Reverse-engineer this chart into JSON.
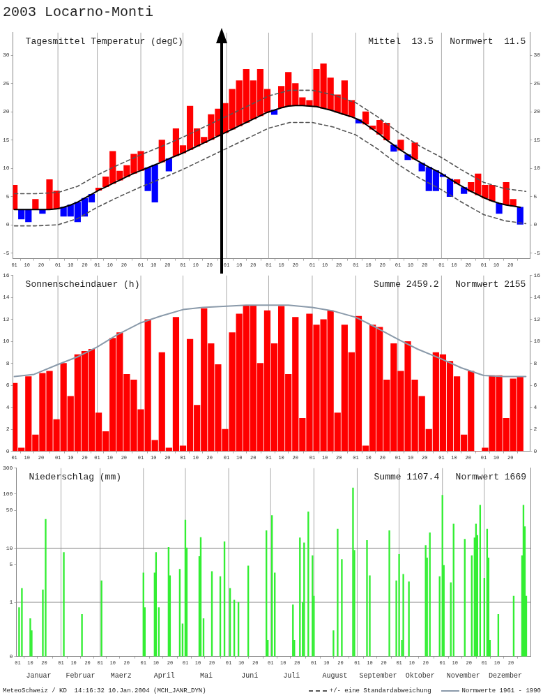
{
  "chart_data": [
    {
      "type": "bar",
      "title": "2003 Locarno-Monti",
      "subtitle": "Tagesmittel Temperatur (degC)",
      "annotations": [
        "Mittel  13.5   Normwert  11.5"
      ],
      "x": [
        "2003-01-01",
        "2003-01-06",
        "2003-01-11",
        "2003-01-16",
        "2003-01-21",
        "2003-01-26",
        "2003-01-31",
        "2003-02-05",
        "2003-02-10",
        "2003-02-15",
        "2003-02-20",
        "2003-02-25",
        "2003-03-02",
        "2003-03-07",
        "2003-03-12",
        "2003-03-17",
        "2003-03-22",
        "2003-03-27",
        "2003-04-01",
        "2003-04-06",
        "2003-04-11",
        "2003-04-16",
        "2003-04-21",
        "2003-04-26",
        "2003-05-01",
        "2003-05-06",
        "2003-05-11",
        "2003-05-16",
        "2003-05-21",
        "2003-05-26",
        "2003-05-31",
        "2003-06-05",
        "2003-06-10",
        "2003-06-15",
        "2003-06-20",
        "2003-06-25",
        "2003-06-30",
        "2003-07-05",
        "2003-07-10",
        "2003-07-15",
        "2003-07-20",
        "2003-07-25",
        "2003-07-30",
        "2003-08-04",
        "2003-08-09",
        "2003-08-14",
        "2003-08-19",
        "2003-08-24",
        "2003-08-29",
        "2003-09-03",
        "2003-09-08",
        "2003-09-13",
        "2003-09-18",
        "2003-09-23",
        "2003-09-28",
        "2003-10-03",
        "2003-10-08",
        "2003-10-13",
        "2003-10-18",
        "2003-10-23",
        "2003-10-28",
        "2003-11-02",
        "2003-11-07",
        "2003-11-12",
        "2003-11-17",
        "2003-11-22",
        "2003-11-27",
        "2003-12-02",
        "2003-12-07",
        "2003-12-12",
        "2003-12-17",
        "2003-12-22",
        "2003-12-27"
      ],
      "xlim": [
        "2002-12-31",
        "2004-01-03"
      ],
      "xticks": [
        {
          "value": "2003-01-01",
          "label": "01"
        },
        {
          "value": "2003-01-10",
          "label": "10"
        },
        {
          "value": "2003-01-20",
          "label": "20"
        },
        {
          "value": "2003-02-01",
          "label": "01"
        },
        {
          "value": "2003-02-10",
          "label": "10"
        },
        {
          "value": "2003-02-20",
          "label": "20"
        },
        {
          "value": "2003-03-01",
          "label": "01"
        },
        {
          "value": "2003-03-10",
          "label": "10"
        },
        {
          "value": "2003-03-20",
          "label": "20"
        },
        {
          "value": "2003-04-01",
          "label": "01"
        },
        {
          "value": "2003-04-10",
          "label": "10"
        },
        {
          "value": "2003-04-20",
          "label": "20"
        },
        {
          "value": "2003-05-01",
          "label": "01"
        },
        {
          "value": "2003-05-10",
          "label": "10"
        },
        {
          "value": "2003-05-20",
          "label": "20"
        },
        {
          "value": "2003-06-01",
          "label": "01"
        },
        {
          "value": "2003-06-10",
          "label": "10"
        },
        {
          "value": "2003-06-20",
          "label": "20"
        },
        {
          "value": "2003-07-01",
          "label": "01"
        },
        {
          "value": "2003-07-10",
          "label": "10"
        },
        {
          "value": "2003-07-20",
          "label": "20"
        },
        {
          "value": "2003-08-01",
          "label": "01"
        },
        {
          "value": "2003-08-10",
          "label": "10"
        },
        {
          "value": "2003-08-20",
          "label": "20"
        },
        {
          "value": "2003-09-01",
          "label": "01"
        },
        {
          "value": "2003-09-10",
          "label": "10"
        },
        {
          "value": "2003-09-20",
          "label": "20"
        },
        {
          "value": "2003-10-01",
          "label": "01"
        },
        {
          "value": "2003-10-10",
          "label": "10"
        },
        {
          "value": "2003-10-20",
          "label": "20"
        },
        {
          "value": "2003-11-01",
          "label": "01"
        },
        {
          "value": "2003-11-10",
          "label": "10"
        },
        {
          "value": "2003-11-20",
          "label": "20"
        },
        {
          "value": "2003-12-01",
          "label": "01"
        },
        {
          "value": "2003-12-10",
          "label": "10"
        },
        {
          "value": "2003-12-20",
          "label": "20"
        }
      ],
      "ylim": [
        -6,
        34
      ],
      "yticks": [
        -5,
        0,
        5,
        10,
        15,
        20,
        25,
        30
      ],
      "y2lim": [
        -6,
        34
      ],
      "y2ticks": [
        -5,
        0,
        5,
        10,
        15,
        20,
        25,
        30
      ],
      "legend": "bottom",
      "marker": "none",
      "ref_lines": [
        {
          "axis": "x",
          "value": "2003-02-01",
          "color": "#aaaaaa"
        },
        {
          "axis": "x",
          "value": "2003-03-01",
          "color": "#aaaaaa"
        },
        {
          "axis": "x",
          "value": "2003-04-01",
          "color": "#aaaaaa"
        },
        {
          "axis": "x",
          "value": "2003-05-01",
          "color": "#aaaaaa"
        },
        {
          "axis": "x",
          "value": "2003-06-01",
          "color": "#aaaaaa"
        },
        {
          "axis": "x",
          "value": "2003-07-01",
          "color": "#aaaaaa"
        },
        {
          "axis": "x",
          "value": "2003-08-01",
          "color": "#aaaaaa"
        },
        {
          "axis": "x",
          "value": "2003-09-01",
          "color": "#aaaaaa"
        },
        {
          "axis": "x",
          "value": "2003-10-01",
          "color": "#aaaaaa"
        },
        {
          "axis": "x",
          "value": "2003-11-01",
          "color": "#aaaaaa"
        },
        {
          "axis": "x",
          "value": "2003-12-01",
          "color": "#aaaaaa"
        }
      ],
      "series": [
        {
          "values": [
            4.3,
            -1.7,
            -2.2,
            1.8,
            -0.7,
            5.3,
            3.2,
            -1.6,
            -2.0,
            -3.5,
            -3.2,
            -1.4,
            0.4,
            1.8,
            5.7,
            1.6,
            2.0,
            3.4,
            3.4,
            -4.1,
            -6.6,
            3.9,
            -2.2,
            4.8,
            1.3,
            7.7,
            3.1,
            1.0,
            4.4,
            4.8,
            5.2,
            7.1,
            8.0,
            9.4,
            6.8,
            8.2,
            4.1,
            -0.8,
            3.8,
            6.0,
            3.9,
            1.4,
            1.0,
            6.6,
            7.9,
            5.7,
            3.1,
            6.0,
            2.9,
            -0.6,
            2.2,
            0.6,
            2.5,
            3.0,
            -1.1,
            1.8,
            -0.9,
            2.9,
            -1.4,
            -4.2,
            -3.6,
            -0.4,
            -3.1,
            0.7,
            -1.1,
            1.6,
            3.7,
            2.3,
            2.8,
            -1.8,
            4.0,
            1.2,
            -3.1
          ],
          "base": [
            2.7,
            2.7,
            2.7,
            2.7,
            2.7,
            2.7,
            2.8,
            3.1,
            3.5,
            4.0,
            4.7,
            5.4,
            6.1,
            6.7,
            7.3,
            7.9,
            8.5,
            9.1,
            9.6,
            10.1,
            10.6,
            11.1,
            11.7,
            12.2,
            12.7,
            13.3,
            13.9,
            14.5,
            15.1,
            15.7,
            16.3,
            16.9,
            17.5,
            18.1,
            18.7,
            19.3,
            19.9,
            20.3,
            20.7,
            21.0,
            21.1,
            21.1,
            21.0,
            20.9,
            20.6,
            20.3,
            19.9,
            19.5,
            19.1,
            18.6,
            17.8,
            16.9,
            16.0,
            15.0,
            14.1,
            13.2,
            12.4,
            11.6,
            10.9,
            10.2,
            9.6,
            8.9,
            8.1,
            7.3,
            6.6,
            5.9,
            5.3,
            4.7,
            4.2,
            3.8,
            3.5,
            3.3,
            3.1
          ],
          "colors": [
            "#ff0000",
            "#0000ff",
            "#0000ff",
            "#ff0000",
            "#0000ff",
            "#ff0000",
            "#ff0000",
            "#0000ff",
            "#0000ff",
            "#0000ff",
            "#0000ff",
            "#0000ff",
            "#ff0000",
            "#ff0000",
            "#ff0000",
            "#ff0000",
            "#ff0000",
            "#ff0000",
            "#ff0000",
            "#0000ff",
            "#0000ff",
            "#ff0000",
            "#0000ff",
            "#ff0000",
            "#ff0000",
            "#ff0000",
            "#ff0000",
            "#ff0000",
            "#ff0000",
            "#ff0000",
            "#ff0000",
            "#ff0000",
            "#ff0000",
            "#ff0000",
            "#ff0000",
            "#ff0000",
            "#ff0000",
            "#0000ff",
            "#ff0000",
            "#ff0000",
            "#ff0000",
            "#ff0000",
            "#ff0000",
            "#ff0000",
            "#ff0000",
            "#ff0000",
            "#ff0000",
            "#ff0000",
            "#ff0000",
            "#0000ff",
            "#ff0000",
            "#ff0000",
            "#ff0000",
            "#ff0000",
            "#0000ff",
            "#ff0000",
            "#0000ff",
            "#ff0000",
            "#0000ff",
            "#0000ff",
            "#0000ff",
            "#0000ff",
            "#0000ff",
            "#ff0000",
            "#0000ff",
            "#ff0000",
            "#ff0000",
            "#ff0000",
            "#ff0000",
            "#0000ff",
            "#ff0000",
            "#ff0000",
            "#0000ff"
          ]
        },
        {
          "type": "line",
          "color": "#000000",
          "values": [
            2.7,
            2.7,
            2.7,
            2.7,
            2.7,
            2.7,
            2.8,
            3.1,
            3.5,
            4.0,
            4.7,
            5.4,
            6.1,
            6.7,
            7.3,
            7.9,
            8.5,
            9.1,
            9.6,
            10.1,
            10.6,
            11.1,
            11.7,
            12.2,
            12.7,
            13.3,
            13.9,
            14.5,
            15.1,
            15.7,
            16.3,
            16.9,
            17.5,
            18.1,
            18.7,
            19.3,
            19.9,
            20.3,
            20.7,
            21.0,
            21.1,
            21.1,
            21.0,
            20.9,
            20.6,
            20.3,
            19.9,
            19.5,
            19.1,
            18.6,
            17.8,
            16.9,
            16.0,
            15.0,
            14.1,
            13.2,
            12.4,
            11.6,
            10.9,
            10.2,
            9.6,
            8.9,
            8.1,
            7.3,
            6.6,
            5.9,
            5.3,
            4.7,
            4.2,
            3.8,
            3.5,
            3.3,
            3.1
          ]
        },
        {
          "type": "line",
          "name": "+/- eine Standardabweichung",
          "color": "#555555",
          "line_style": "dashed",
          "x": [
            "2003-01-01",
            "2003-01-16",
            "2003-02-01",
            "2003-02-15",
            "2003-03-01",
            "2003-03-16",
            "2003-04-01",
            "2003-04-16",
            "2003-05-01",
            "2003-05-16",
            "2003-06-01",
            "2003-06-16",
            "2003-07-01",
            "2003-07-16",
            "2003-08-01",
            "2003-08-16",
            "2003-09-01",
            "2003-09-16",
            "2003-10-01",
            "2003-10-16",
            "2003-11-01",
            "2003-11-16",
            "2003-12-01",
            "2003-12-16",
            "2003-12-31"
          ],
          "values": [
            5.5,
            5.5,
            5.7,
            6.8,
            8.8,
            10.6,
            12.4,
            13.9,
            15.5,
            17.3,
            19.2,
            21.0,
            22.8,
            23.8,
            23.8,
            23.0,
            21.6,
            19.2,
            16.4,
            14.0,
            11.9,
            9.6,
            7.5,
            6.4,
            5.9
          ]
        },
        {
          "type": "line",
          "color": "#555555",
          "line_style": "dashed",
          "x": [
            "2003-01-01",
            "2003-01-16",
            "2003-02-01",
            "2003-02-15",
            "2003-03-01",
            "2003-03-16",
            "2003-04-01",
            "2003-04-16",
            "2003-05-01",
            "2003-05-16",
            "2003-06-01",
            "2003-06-16",
            "2003-07-01",
            "2003-07-16",
            "2003-08-01",
            "2003-08-16",
            "2003-09-01",
            "2003-09-16",
            "2003-10-01",
            "2003-10-16",
            "2003-11-01",
            "2003-11-16",
            "2003-12-01",
            "2003-12-16",
            "2003-12-31"
          ],
          "values": [
            -0.2,
            -0.2,
            0.0,
            1.1,
            3.1,
            4.9,
            6.7,
            8.2,
            9.8,
            11.6,
            13.5,
            15.3,
            17.1,
            18.1,
            18.1,
            17.3,
            15.9,
            13.5,
            10.7,
            8.3,
            6.2,
            3.9,
            1.8,
            0.7,
            0.2
          ]
        }
      ]
    },
    {
      "type": "bar",
      "title": "Sonnenscheindauer (h)",
      "annotations": [
        "Summe 2459.2   Normwert 2155"
      ],
      "x": [
        "2003-01-01",
        "2003-01-06",
        "2003-01-11",
        "2003-01-16",
        "2003-01-21",
        "2003-01-26",
        "2003-01-31",
        "2003-02-05",
        "2003-02-10",
        "2003-02-15",
        "2003-02-20",
        "2003-02-25",
        "2003-03-02",
        "2003-03-07",
        "2003-03-12",
        "2003-03-17",
        "2003-03-22",
        "2003-03-27",
        "2003-04-01",
        "2003-04-06",
        "2003-04-11",
        "2003-04-16",
        "2003-04-21",
        "2003-04-26",
        "2003-05-01",
        "2003-05-06",
        "2003-05-11",
        "2003-05-16",
        "2003-05-21",
        "2003-05-26",
        "2003-05-31",
        "2003-06-05",
        "2003-06-10",
        "2003-06-15",
        "2003-06-20",
        "2003-06-25",
        "2003-06-30",
        "2003-07-05",
        "2003-07-10",
        "2003-07-15",
        "2003-07-20",
        "2003-07-25",
        "2003-07-30",
        "2003-08-04",
        "2003-08-09",
        "2003-08-14",
        "2003-08-19",
        "2003-08-24",
        "2003-08-29",
        "2003-09-03",
        "2003-09-08",
        "2003-09-13",
        "2003-09-18",
        "2003-09-23",
        "2003-09-28",
        "2003-10-03",
        "2003-10-08",
        "2003-10-13",
        "2003-10-18",
        "2003-10-23",
        "2003-10-28",
        "2003-11-02",
        "2003-11-07",
        "2003-11-12",
        "2003-11-17",
        "2003-11-22",
        "2003-11-27",
        "2003-12-02",
        "2003-12-07",
        "2003-12-12",
        "2003-12-17",
        "2003-12-22",
        "2003-12-27"
      ],
      "xlim": [
        "2002-12-31",
        "2004-01-03"
      ],
      "xticks": [
        {
          "value": "2003-01-01",
          "label": "01"
        },
        {
          "value": "2003-01-10",
          "label": "10"
        },
        {
          "value": "2003-01-20",
          "label": "20"
        },
        {
          "value": "2003-02-01",
          "label": "01"
        },
        {
          "value": "2003-02-10",
          "label": "10"
        },
        {
          "value": "2003-02-20",
          "label": "20"
        },
        {
          "value": "2003-03-01",
          "label": "01"
        },
        {
          "value": "2003-03-10",
          "label": "10"
        },
        {
          "value": "2003-03-20",
          "label": "20"
        },
        {
          "value": "2003-04-01",
          "label": "01"
        },
        {
          "value": "2003-04-10",
          "label": "10"
        },
        {
          "value": "2003-04-20",
          "label": "20"
        },
        {
          "value": "2003-05-01",
          "label": "01"
        },
        {
          "value": "2003-05-10",
          "label": "10"
        },
        {
          "value": "2003-05-20",
          "label": "20"
        },
        {
          "value": "2003-06-01",
          "label": "01"
        },
        {
          "value": "2003-06-10",
          "label": "10"
        },
        {
          "value": "2003-06-20",
          "label": "20"
        },
        {
          "value": "2003-07-01",
          "label": "01"
        },
        {
          "value": "2003-07-10",
          "label": "10"
        },
        {
          "value": "2003-07-20",
          "label": "20"
        },
        {
          "value": "2003-08-01",
          "label": "01"
        },
        {
          "value": "2003-08-10",
          "label": "10"
        },
        {
          "value": "2003-08-20",
          "label": "20"
        },
        {
          "value": "2003-09-01",
          "label": "01"
        },
        {
          "value": "2003-09-10",
          "label": "10"
        },
        {
          "value": "2003-09-20",
          "label": "20"
        },
        {
          "value": "2003-10-01",
          "label": "01"
        },
        {
          "value": "2003-10-10",
          "label": "10"
        },
        {
          "value": "2003-10-20",
          "label": "20"
        },
        {
          "value": "2003-11-01",
          "label": "01"
        },
        {
          "value": "2003-11-10",
          "label": "10"
        },
        {
          "value": "2003-11-20",
          "label": "20"
        },
        {
          "value": "2003-12-01",
          "label": "01"
        },
        {
          "value": "2003-12-10",
          "label": "10"
        },
        {
          "value": "2003-12-20",
          "label": "20"
        }
      ],
      "ylim": [
        0,
        16
      ],
      "yticks": [
        0,
        2,
        4,
        6,
        8,
        10,
        12,
        14,
        16
      ],
      "y2lim": [
        0,
        16
      ],
      "y2ticks": [
        0,
        2,
        4,
        6,
        8,
        10,
        12,
        14,
        16
      ],
      "legend": "bottom",
      "marker": "none",
      "ref_lines": [
        {
          "axis": "x",
          "value": "2003-02-01",
          "color": "#aaaaaa"
        },
        {
          "axis": "x",
          "value": "2003-03-01",
          "color": "#aaaaaa"
        },
        {
          "axis": "x",
          "value": "2003-04-01",
          "color": "#aaaaaa"
        },
        {
          "axis": "x",
          "value": "2003-05-01",
          "color": "#aaaaaa"
        },
        {
          "axis": "x",
          "value": "2003-06-01",
          "color": "#aaaaaa"
        },
        {
          "axis": "x",
          "value": "2003-07-01",
          "color": "#aaaaaa"
        },
        {
          "axis": "x",
          "value": "2003-08-01",
          "color": "#aaaaaa"
        },
        {
          "axis": "x",
          "value": "2003-09-01",
          "color": "#aaaaaa"
        },
        {
          "axis": "x",
          "value": "2003-10-01",
          "color": "#aaaaaa"
        },
        {
          "axis": "x",
          "value": "2003-11-01",
          "color": "#aaaaaa"
        },
        {
          "axis": "x",
          "value": "2003-12-01",
          "color": "#aaaaaa"
        }
      ],
      "series": [
        {
          "color": "#ff0000",
          "values": [
            6.2,
            0.3,
            6.8,
            1.5,
            7.1,
            7.3,
            2.9,
            8.0,
            5.0,
            8.8,
            9.1,
            9.3,
            3.5,
            1.8,
            10.3,
            10.8,
            7.0,
            6.5,
            3.8,
            12.0,
            1.0,
            9.0,
            0.3,
            12.2,
            0.5,
            10.2,
            4.2,
            13.0,
            9.8,
            7.9,
            2.0,
            10.8,
            12.5,
            13.3,
            13.3,
            8.0,
            12.8,
            9.8,
            13.2,
            7.0,
            12.2,
            3.0,
            12.5,
            11.5,
            12.0,
            12.8,
            3.5,
            11.5,
            9.0,
            12.3,
            0.5,
            11.5,
            11.3,
            6.5,
            9.8,
            7.3,
            10.0,
            6.5,
            5.0,
            2.0,
            9.0,
            8.8,
            8.2,
            6.8,
            1.5,
            7.3,
            0,
            0.3,
            6.9,
            6.9,
            3.0,
            6.6,
            6.8
          ]
        },
        {
          "type": "line",
          "name": "Normwerte 1961 - 1990",
          "color": "#8a9aaa",
          "x": [
            "2003-01-01",
            "2003-01-15",
            "2003-02-01",
            "2003-02-15",
            "2003-03-01",
            "2003-03-15",
            "2003-04-01",
            "2003-04-15",
            "2003-05-01",
            "2003-05-15",
            "2003-06-01",
            "2003-06-15",
            "2003-07-01",
            "2003-07-15",
            "2003-08-01",
            "2003-08-15",
            "2003-09-01",
            "2003-09-15",
            "2003-10-01",
            "2003-10-15",
            "2003-11-01",
            "2003-11-15",
            "2003-12-01",
            "2003-12-15",
            "2003-12-31"
          ],
          "values": [
            6.8,
            7.0,
            7.9,
            8.6,
            9.5,
            10.6,
            11.7,
            12.3,
            12.9,
            13.1,
            13.2,
            13.3,
            13.3,
            13.3,
            13.1,
            12.8,
            12.2,
            11.3,
            10.2,
            9.3,
            8.4,
            7.6,
            6.9,
            6.8,
            6.8
          ]
        }
      ]
    },
    {
      "type": "bar",
      "title": "Niederschlag (mm)",
      "annotations": [
        "Summe 1107.4   Normwert 1669",
        "MeteoSchweiz / KD  14:16:32 10.Jan.2004 (MCH_JANR_DYN)"
      ],
      "log": "y",
      "x": [
        "2003-01-02",
        "2003-01-04",
        "2003-01-10",
        "2003-01-11",
        "2003-01-19",
        "2003-01-21",
        "2003-02-03",
        "2003-02-16",
        "2003-03-02",
        "2003-04-01",
        "2003-04-02",
        "2003-04-09",
        "2003-04-10",
        "2003-04-12",
        "2003-04-19",
        "2003-04-20",
        "2003-04-27",
        "2003-04-29",
        "2003-05-01",
        "2003-05-02",
        "2003-05-11",
        "2003-05-12",
        "2003-05-14",
        "2003-05-20",
        "2003-05-26",
        "2003-05-29",
        "2003-06-02",
        "2003-06-05",
        "2003-06-08",
        "2003-06-15",
        "2003-06-28",
        "2003-06-29",
        "2003-07-02",
        "2003-07-04",
        "2003-07-17",
        "2003-07-18",
        "2003-07-22",
        "2003-07-24",
        "2003-07-25",
        "2003-07-28",
        "2003-07-31",
        "2003-08-01",
        "2003-08-15",
        "2003-08-18",
        "2003-08-21",
        "2003-08-29",
        "2003-08-30",
        "2003-09-08",
        "2003-09-10",
        "2003-09-24",
        "2003-09-29",
        "2003-10-01",
        "2003-10-03",
        "2003-10-04",
        "2003-10-08",
        "2003-10-20",
        "2003-10-21",
        "2003-10-23",
        "2003-10-30",
        "2003-11-01",
        "2003-11-02",
        "2003-11-07",
        "2003-11-09",
        "2003-11-17",
        "2003-11-22",
        "2003-11-24",
        "2003-11-25",
        "2003-11-26",
        "2003-11-28",
        "2003-12-01",
        "2003-12-03",
        "2003-12-04",
        "2003-12-05",
        "2003-12-11",
        "2003-12-22",
        "2003-12-28",
        "2003-12-29",
        "2003-12-30",
        "2003-12-31"
      ],
      "values": [
        0.8,
        1.8,
        0.5,
        0.3,
        1.7,
        34,
        8.3,
        0.6,
        2.5,
        3.5,
        0.8,
        3.5,
        8.3,
        0.8,
        10.3,
        3.1,
        4.1,
        0.4,
        33,
        10.1,
        7.0,
        15.8,
        0.5,
        3.7,
        3.0,
        13.2,
        1.8,
        1.1,
        1.0,
        4.7,
        21,
        0.2,
        40,
        3.5,
        0.9,
        0.2,
        15.5,
        1.0,
        12.5,
        47,
        7.3,
        1.3,
        0.3,
        22.5,
        6.2,
        130,
        9.1,
        13.9,
        3.1,
        21,
        2.5,
        7.7,
        0.2,
        3.3,
        2.4,
        11.2,
        6.6,
        19.2,
        3.0,
        95,
        4.8,
        2.3,
        28,
        14.6,
        7.3,
        15.5,
        28,
        17.2,
        62,
        2.8,
        22.5,
        6.6,
        0.2,
        0.6,
        1.3,
        7.3,
        62,
        25,
        1.3
      ],
      "color": "#33ee33",
      "xlim": [
        "2002-12-31",
        "2004-01-03"
      ],
      "xticks": [
        {
          "value": "2003-01-01",
          "label": "01"
        },
        {
          "value": "2003-01-10",
          "label": "10"
        },
        {
          "value": "2003-01-20",
          "label": "20"
        },
        {
          "value": "2003-02-01",
          "label": "01"
        },
        {
          "value": "2003-02-10",
          "label": "10"
        },
        {
          "value": "2003-02-20",
          "label": "20"
        },
        {
          "value": "2003-03-01",
          "label": "01"
        },
        {
          "value": "2003-03-10",
          "label": "10"
        },
        {
          "value": "2003-03-20",
          "label": "20"
        },
        {
          "value": "2003-04-01",
          "label": "01"
        },
        {
          "value": "2003-04-10",
          "label": "10"
        },
        {
          "value": "2003-04-20",
          "label": "20"
        },
        {
          "value": "2003-05-01",
          "label": "01"
        },
        {
          "value": "2003-05-10",
          "label": "10"
        },
        {
          "value": "2003-05-20",
          "label": "20"
        },
        {
          "value": "2003-06-01",
          "label": "01"
        },
        {
          "value": "2003-06-10",
          "label": "10"
        },
        {
          "value": "2003-06-20",
          "label": "20"
        },
        {
          "value": "2003-07-01",
          "label": "01"
        },
        {
          "value": "2003-07-10",
          "label": "10"
        },
        {
          "value": "2003-07-20",
          "label": "20"
        },
        {
          "value": "2003-08-01",
          "label": "01"
        },
        {
          "value": "2003-08-10",
          "label": "10"
        },
        {
          "value": "2003-08-20",
          "label": "20"
        },
        {
          "value": "2003-09-01",
          "label": "01"
        },
        {
          "value": "2003-09-10",
          "label": "10"
        },
        {
          "value": "2003-09-20",
          "label": "20"
        },
        {
          "value": "2003-10-01",
          "label": "01"
        },
        {
          "value": "2003-10-10",
          "label": "10"
        },
        {
          "value": "2003-10-20",
          "label": "20"
        },
        {
          "value": "2003-11-01",
          "label": "01"
        },
        {
          "value": "2003-11-10",
          "label": "10"
        },
        {
          "value": "2003-11-20",
          "label": "20"
        },
        {
          "value": "2003-12-01",
          "label": "01"
        },
        {
          "value": "2003-12-10",
          "label": "10"
        },
        {
          "value": "2003-12-20",
          "label": "20"
        }
      ],
      "x2lim": [
        "2002-12-31",
        "2004-01-03"
      ],
      "x2ticks": [
        {
          "value": "2003-01-16",
          "label": "Januar"
        },
        {
          "value": "2003-02-15",
          "label": "Februar"
        },
        {
          "value": "2003-03-16",
          "label": "Maerz"
        },
        {
          "value": "2003-04-16",
          "label": "April"
        },
        {
          "value": "2003-05-16",
          "label": "Mai"
        },
        {
          "value": "2003-06-16",
          "label": "Juni"
        },
        {
          "value": "2003-07-16",
          "label": "Juli"
        },
        {
          "value": "2003-08-16",
          "label": "August"
        },
        {
          "value": "2003-09-16",
          "label": "September"
        },
        {
          "value": "2003-10-16",
          "label": "Oktober"
        },
        {
          "value": "2003-11-16",
          "label": "November"
        },
        {
          "value": "2003-12-16",
          "label": "Dezember"
        }
      ],
      "ylim": [
        0.1,
        300
      ],
      "yticks": [
        {
          "value": 0.1,
          "label": "0"
        },
        1,
        5,
        10,
        50,
        100,
        300
      ],
      "ref_lines": [
        {
          "axis": "x",
          "value": "2003-02-01",
          "color": "#aaaaaa"
        },
        {
          "axis": "x",
          "value": "2003-03-01",
          "color": "#aaaaaa"
        },
        {
          "axis": "x",
          "value": "2003-04-01",
          "color": "#aaaaaa"
        },
        {
          "axis": "x",
          "value": "2003-05-01",
          "color": "#aaaaaa"
        },
        {
          "axis": "x",
          "value": "2003-06-01",
          "color": "#aaaaaa"
        },
        {
          "axis": "x",
          "value": "2003-07-01",
          "color": "#aaaaaa"
        },
        {
          "axis": "x",
          "value": "2003-08-01",
          "color": "#aaaaaa"
        },
        {
          "axis": "x",
          "value": "2003-09-01",
          "color": "#aaaaaa"
        },
        {
          "axis": "x",
          "value": "2003-10-01",
          "color": "#aaaaaa"
        },
        {
          "axis": "x",
          "value": "2003-11-01",
          "color": "#aaaaaa"
        },
        {
          "axis": "x",
          "value": "2003-12-01",
          "color": "#aaaaaa"
        },
        {
          "axis": "y",
          "value": 1,
          "color": "#888888"
        },
        {
          "axis": "y",
          "value": 10,
          "color": "#888888"
        }
      ]
    }
  ]
}
